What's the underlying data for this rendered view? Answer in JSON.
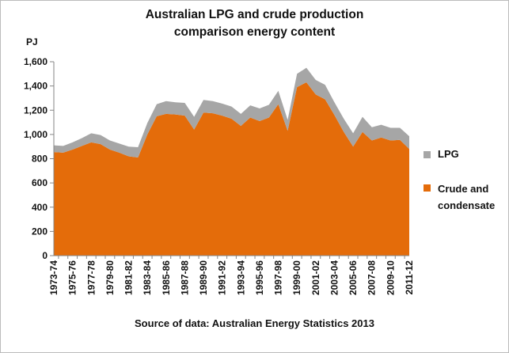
{
  "chart_data": {
    "type": "area",
    "stacked": true,
    "title_lines": [
      "Australian LPG and crude production",
      "comparison energy content"
    ],
    "ylabel": "PJ",
    "ylim": [
      0,
      1600
    ],
    "yticks": [
      "0",
      "200",
      "400",
      "600",
      "800",
      "1,000",
      "1,200",
      "1,400",
      "1,600"
    ],
    "ytick_values": [
      0,
      200,
      400,
      600,
      800,
      1000,
      1200,
      1400,
      1600
    ],
    "categories": [
      "1973-74",
      "1974-75",
      "1975-76",
      "1976-77",
      "1977-78",
      "1978-79",
      "1979-80",
      "1980-81",
      "1981-82",
      "1982-83",
      "1983-84",
      "1984-85",
      "1985-86",
      "1986-87",
      "1987-88",
      "1988-89",
      "1989-90",
      "1990-91",
      "1991-92",
      "1992-93",
      "1993-94",
      "1994-95",
      "1995-96",
      "1996-97",
      "1997-98",
      "1998-99",
      "1999-00",
      "2000-01",
      "2001-02",
      "2002-03",
      "2003-04",
      "2004-05",
      "2005-06",
      "2006-07",
      "2007-08",
      "2008-09",
      "2009-10",
      "2010-11",
      "2011-12"
    ],
    "xtick_labels": [
      "1973-74",
      "1975-76",
      "1977-78",
      "1979-80",
      "1981-82",
      "1983-84",
      "1985-86",
      "1987-88",
      "1989-90",
      "1991-92",
      "1993-94",
      "1995-96",
      "1997-98",
      "1999-00",
      "2001-02",
      "2003-04",
      "2005-06",
      "2007-08",
      "2009-10",
      "2011-12"
    ],
    "series": [
      {
        "name": "Crude and condensate",
        "color": "#E46C0A",
        "values": [
          855,
          850,
          875,
          905,
          935,
          920,
          875,
          850,
          820,
          810,
          1000,
          1150,
          1170,
          1165,
          1155,
          1040,
          1180,
          1175,
          1155,
          1130,
          1070,
          1140,
          1110,
          1140,
          1250,
          1030,
          1390,
          1430,
          1330,
          1290,
          1160,
          1020,
          900,
          1020,
          950,
          975,
          950,
          955,
          880
        ]
      },
      {
        "name": "LPG",
        "color": "#A6A6A6",
        "values": [
          55,
          55,
          60,
          65,
          75,
          75,
          75,
          75,
          80,
          85,
          95,
          100,
          105,
          100,
          105,
          105,
          105,
          100,
          100,
          100,
          100,
          100,
          105,
          105,
          110,
          90,
          110,
          120,
          120,
          120,
          105,
          110,
          110,
          125,
          110,
          105,
          105,
          100,
          105
        ]
      }
    ],
    "legend_position": "right",
    "grid": false,
    "source_note": "Source of data: Australian Energy Statistics 2013"
  }
}
